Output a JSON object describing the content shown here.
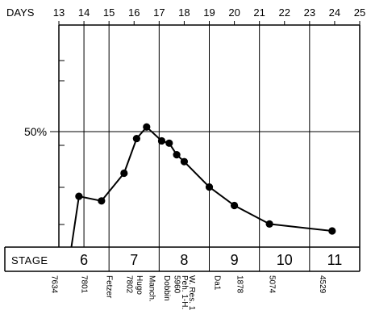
{
  "chart_data": {
    "type": "line",
    "x_axis": {
      "label": "DAYS",
      "ticks": [
        13,
        14,
        15,
        16,
        17,
        18,
        19,
        20,
        21,
        22,
        23,
        24,
        25
      ],
      "range": [
        13,
        25
      ],
      "position": "top"
    },
    "y_axis": {
      "range": [
        0,
        100
      ],
      "reference_line": 50,
      "reference_label": "50%"
    },
    "series": [
      {
        "x": [
          13.5,
          13.8,
          14.7,
          15.6,
          16.1,
          16.5,
          17.1,
          17.4,
          17.7,
          18.0,
          19.0,
          20.0,
          21.4,
          23.9
        ],
        "y": [
          0,
          22,
          20,
          32,
          47,
          52,
          46,
          45,
          40,
          37,
          26,
          18,
          10,
          7
        ]
      }
    ],
    "stage_row": {
      "label": "STAGE",
      "stages": [
        {
          "label": "6",
          "from": 13,
          "to": 15
        },
        {
          "label": "7",
          "from": 15,
          "to": 17
        },
        {
          "label": "8",
          "from": 17,
          "to": 19
        },
        {
          "label": "9",
          "from": 19,
          "to": 21
        },
        {
          "label": "10",
          "from": 21,
          "to": 23
        },
        {
          "label": "11",
          "from": 23,
          "to": 25
        }
      ]
    },
    "embryo_labels": [
      {
        "text": "7634",
        "x": 12.8
      },
      {
        "text": "7801",
        "x": 14.0
      },
      {
        "text": "Fetzer",
        "x": 15.0
      },
      {
        "text": "7802",
        "x": 15.8
      },
      {
        "text": "Hugo",
        "x": 16.2
      },
      {
        "text": "Manch.",
        "x": 16.7
      },
      {
        "text": "Dobbin",
        "x": 17.3
      },
      {
        "text": "5960",
        "x": 17.7
      },
      {
        "text": "Peh. 1-H.",
        "x": 18.0
      },
      {
        "text": "W. Res. 1",
        "x": 18.3
      },
      {
        "text": "Da1",
        "x": 19.3
      },
      {
        "text": "1878",
        "x": 20.2
      },
      {
        "text": "5074",
        "x": 21.5
      },
      {
        "text": "4529",
        "x": 23.5
      }
    ],
    "grid": "vertical lines at odd days"
  }
}
